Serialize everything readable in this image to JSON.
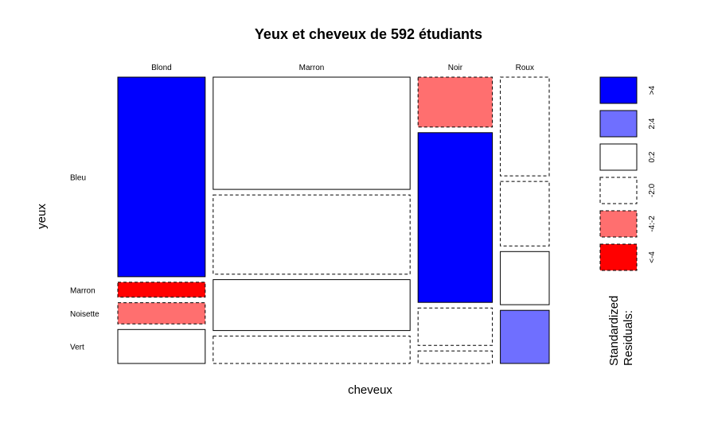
{
  "chart_data": {
    "type": "mosaic",
    "title": "Yeux et cheveux de 592 étudiants",
    "xlabel": "cheveux",
    "ylabel": "yeux",
    "hair": [
      "Blond",
      "Marron",
      "Noir",
      "Roux"
    ],
    "eyes": [
      "Bleu",
      "Marron",
      "Noisette",
      "Vert"
    ],
    "cell_order_by_column": {
      "Blond": [
        "Vert",
        "Noisette",
        "Marron",
        "Bleu"
      ],
      "Marron": [
        "Vert",
        "Noisette",
        "Bleu",
        "Marron"
      ],
      "Noir": [
        "Vert",
        "Noisette",
        "Marron",
        "Bleu"
      ],
      "Roux": [
        "Vert",
        "Noisette",
        "Bleu",
        "Marron"
      ]
    },
    "counts": {
      "Blond": {
        "Bleu": 94,
        "Marron": 7,
        "Noisette": 10,
        "Vert": 16
      },
      "Marron": {
        "Bleu": 84,
        "Marron": 119,
        "Noisette": 54,
        "Vert": 29
      },
      "Noir": {
        "Bleu": 20,
        "Marron": 68,
        "Noisette": 15,
        "Vert": 5
      },
      "Roux": {
        "Bleu": 17,
        "Marron": 26,
        "Noisette": 14,
        "Vert": 14
      }
    },
    "residual_class": {
      "Blond": {
        "Bleu": ">4",
        "Marron": "<-4",
        "Noisette": "-4:-2",
        "Vert": "0:2"
      },
      "Marron": {
        "Bleu": "-2:0",
        "Marron": "0:2",
        "Noisette": "0:2",
        "Vert": "-2:0"
      },
      "Noir": {
        "Bleu": "-4:-2",
        "Marron": ">4",
        "Noisette": "-2:0",
        "Vert": "-2:0"
      },
      "Roux": {
        "Bleu": "-2:0",
        "Marron": "-2:0",
        "Noisette": "0:2",
        "Vert": "2:4"
      }
    },
    "legend": {
      "title_line1": "Standardized",
      "title_line2": "Residuals:",
      "items": [
        {
          "label": ">4",
          "fill": "#0000ff",
          "dashed": false
        },
        {
          "label": "2:4",
          "fill": "#6f6fff",
          "dashed": false
        },
        {
          "label": "0:2",
          "fill": "#ffffff",
          "dashed": false
        },
        {
          "label": "-2:0",
          "fill": "#ffffff",
          "dashed": true
        },
        {
          "label": "-4:-2",
          "fill": "#ff6f6f",
          "dashed": true
        },
        {
          "label": "<-4",
          "fill": "#ff0000",
          "dashed": true
        }
      ]
    }
  }
}
